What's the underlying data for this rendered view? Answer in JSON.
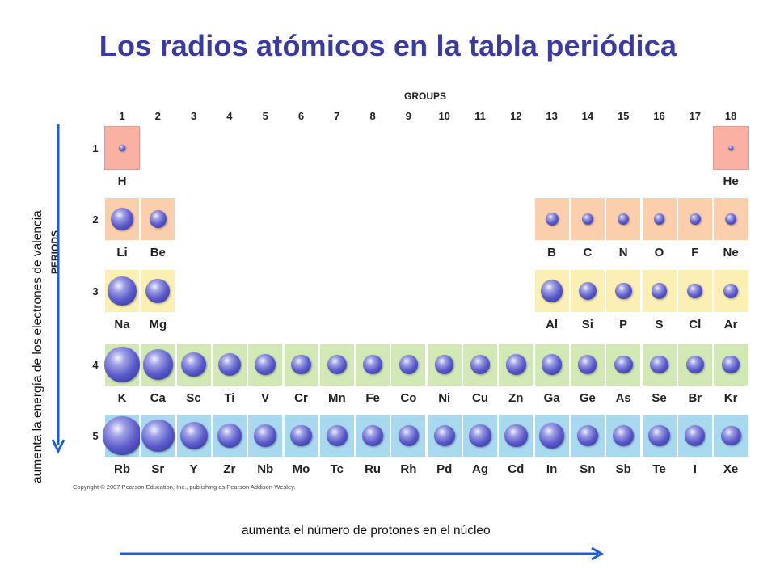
{
  "title": "Los radios atómicos en la tabla periódica",
  "groups_heading": "GROUPS",
  "groups": [
    "1",
    "2",
    "3",
    "4",
    "5",
    "6",
    "7",
    "8",
    "9",
    "10",
    "11",
    "12",
    "13",
    "14",
    "15",
    "16",
    "17",
    "18"
  ],
  "periods_heading": "PERIODS",
  "periods": [
    {
      "number": "1",
      "elements": [
        {
          "symbol": "H",
          "group": 1,
          "radius_pm": 37
        },
        {
          "symbol": "He",
          "group": 18,
          "radius_pm": 31
        }
      ]
    },
    {
      "number": "2",
      "elements": [
        {
          "symbol": "Li",
          "group": 1,
          "radius_pm": 152
        },
        {
          "symbol": "Be",
          "group": 2,
          "radius_pm": 112
        },
        {
          "symbol": "B",
          "group": 13,
          "radius_pm": 85
        },
        {
          "symbol": "C",
          "group": 14,
          "radius_pm": 77
        },
        {
          "symbol": "N",
          "group": 15,
          "radius_pm": 75
        },
        {
          "symbol": "O",
          "group": 16,
          "radius_pm": 73
        },
        {
          "symbol": "F",
          "group": 17,
          "radius_pm": 72
        },
        {
          "symbol": "Ne",
          "group": 18,
          "radius_pm": 71
        }
      ]
    },
    {
      "number": "3",
      "elements": [
        {
          "symbol": "Na",
          "group": 1,
          "radius_pm": 186
        },
        {
          "symbol": "Mg",
          "group": 2,
          "radius_pm": 160
        },
        {
          "symbol": "Al",
          "group": 13,
          "radius_pm": 143
        },
        {
          "symbol": "Si",
          "group": 14,
          "radius_pm": 118
        },
        {
          "symbol": "P",
          "group": 15,
          "radius_pm": 110
        },
        {
          "symbol": "S",
          "group": 16,
          "radius_pm": 103
        },
        {
          "symbol": "Cl",
          "group": 17,
          "radius_pm": 99
        },
        {
          "symbol": "Ar",
          "group": 18,
          "radius_pm": 98
        }
      ]
    },
    {
      "number": "4",
      "elements": [
        {
          "symbol": "K",
          "group": 1,
          "radius_pm": 227
        },
        {
          "symbol": "Ca",
          "group": 2,
          "radius_pm": 197
        },
        {
          "symbol": "Sc",
          "group": 3,
          "radius_pm": 162
        },
        {
          "symbol": "Ti",
          "group": 4,
          "radius_pm": 147
        },
        {
          "symbol": "V",
          "group": 5,
          "radius_pm": 134
        },
        {
          "symbol": "Cr",
          "group": 6,
          "radius_pm": 128
        },
        {
          "symbol": "Mn",
          "group": 7,
          "radius_pm": 127
        },
        {
          "symbol": "Fe",
          "group": 8,
          "radius_pm": 126
        },
        {
          "symbol": "Co",
          "group": 9,
          "radius_pm": 125
        },
        {
          "symbol": "Ni",
          "group": 10,
          "radius_pm": 124
        },
        {
          "symbol": "Cu",
          "group": 11,
          "radius_pm": 128
        },
        {
          "symbol": "Zn",
          "group": 12,
          "radius_pm": 134
        },
        {
          "symbol": "Ga",
          "group": 13,
          "radius_pm": 135
        },
        {
          "symbol": "Ge",
          "group": 14,
          "radius_pm": 122
        },
        {
          "symbol": "As",
          "group": 15,
          "radius_pm": 120
        },
        {
          "symbol": "Se",
          "group": 16,
          "radius_pm": 119
        },
        {
          "symbol": "Br",
          "group": 17,
          "radius_pm": 114
        },
        {
          "symbol": "Kr",
          "group": 18,
          "radius_pm": 112
        }
      ]
    },
    {
      "number": "5",
      "elements": [
        {
          "symbol": "Rb",
          "group": 1,
          "radius_pm": 248
        },
        {
          "symbol": "Sr",
          "group": 2,
          "radius_pm": 215
        },
        {
          "symbol": "Y",
          "group": 3,
          "radius_pm": 180
        },
        {
          "symbol": "Zr",
          "group": 4,
          "radius_pm": 160
        },
        {
          "symbol": "Nb",
          "group": 5,
          "radius_pm": 146
        },
        {
          "symbol": "Mo",
          "group": 6,
          "radius_pm": 139
        },
        {
          "symbol": "Tc",
          "group": 7,
          "radius_pm": 136
        },
        {
          "symbol": "Ru",
          "group": 8,
          "radius_pm": 134
        },
        {
          "symbol": "Rh",
          "group": 9,
          "radius_pm": 134
        },
        {
          "symbol": "Pd",
          "group": 10,
          "radius_pm": 137
        },
        {
          "symbol": "Ag",
          "group": 11,
          "radius_pm": 144
        },
        {
          "symbol": "Cd",
          "group": 12,
          "radius_pm": 151
        },
        {
          "symbol": "In",
          "group": 13,
          "radius_pm": 167
        },
        {
          "symbol": "Sn",
          "group": 14,
          "radius_pm": 140
        },
        {
          "symbol": "Sb",
          "group": 15,
          "radius_pm": 140
        },
        {
          "symbol": "Te",
          "group": 16,
          "radius_pm": 142
        },
        {
          "symbol": "I",
          "group": 17,
          "radius_pm": 133
        },
        {
          "symbol": "Xe",
          "group": 18,
          "radius_pm": 131
        }
      ]
    }
  ],
  "copyright": "Copyright © 2007 Pearson Education, Inc., publishing as Pearson Addison-Wesley.",
  "vertical_label": "aumenta la energía de los electrones de valencia",
  "horizontal_label": "aumenta el número de protones en el núcleo",
  "colors": {
    "title": "#3a3aa0",
    "arrow": "#1a5fd6",
    "period_1": "#f8b1a3",
    "period_2": "#fbcfac",
    "period_3": "#fbefb3",
    "period_4": "#d2e9b6",
    "period_5": "#a9d9ee"
  }
}
